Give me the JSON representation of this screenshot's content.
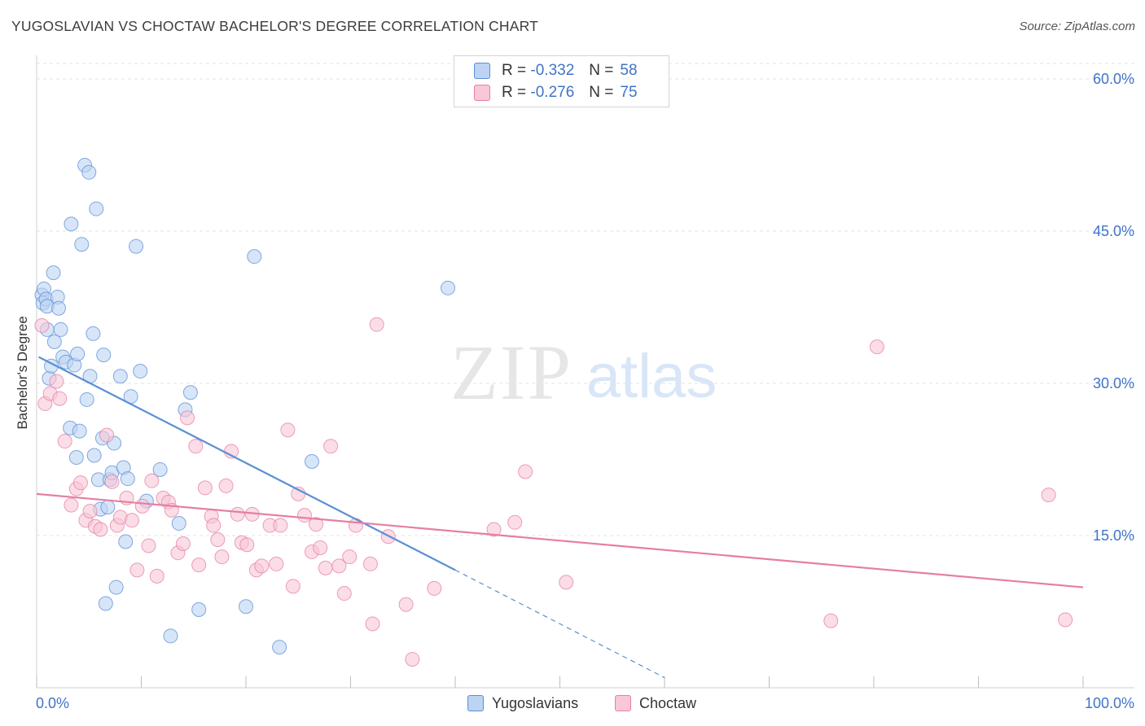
{
  "title": "YUGOSLAVIAN VS CHOCTAW BACHELOR'S DEGREE CORRELATION CHART",
  "source": "Source: ZipAtlas.com",
  "watermark": {
    "zip": "ZIP",
    "atlas": "atlas"
  },
  "legend": {
    "r_label": "R =",
    "n_label": "N =",
    "series": [
      {
        "name": "Yugoslavians",
        "r": "-0.332",
        "n": "58",
        "color": "#5b8fd6"
      },
      {
        "name": "Choctaw",
        "r": "-0.276",
        "n": "75",
        "color": "#e57fa2"
      }
    ]
  },
  "chart_data": {
    "type": "scatter",
    "title": "YUGOSLAVIAN VS CHOCTAW BACHELOR'S DEGREE CORRELATION CHART",
    "xlabel": "",
    "ylabel": "Bachelor's Degree",
    "xlim": [
      0,
      100
    ],
    "ylim": [
      0,
      60
    ],
    "x_tick_labels": [
      "0.0%",
      "100.0%"
    ],
    "y_ticks": [
      15,
      30,
      45,
      60
    ],
    "y_tick_labels": [
      "15.0%",
      "30.0%",
      "45.0%",
      "60.0%"
    ],
    "grid": true,
    "series": [
      {
        "name": "Yugoslavians",
        "color": "#5b8fd6",
        "fill": "#bcd3f3",
        "r": -0.332,
        "n": 58,
        "trend": {
          "x0": 0.2,
          "y0": 32.6,
          "x1": 40.0,
          "y1": 11.6,
          "dash_to_x": 60.0,
          "dash_to_y": 1.0
        },
        "points": [
          {
            "x": 0.5,
            "y": 38.7
          },
          {
            "x": 0.7,
            "y": 39.3
          },
          {
            "x": 0.6,
            "y": 37.9
          },
          {
            "x": 0.9,
            "y": 38.3
          },
          {
            "x": 1.0,
            "y": 37.6
          },
          {
            "x": 1.0,
            "y": 35.3
          },
          {
            "x": 1.2,
            "y": 30.5
          },
          {
            "x": 1.4,
            "y": 31.7
          },
          {
            "x": 1.6,
            "y": 40.9
          },
          {
            "x": 1.7,
            "y": 34.1
          },
          {
            "x": 2.0,
            "y": 38.5
          },
          {
            "x": 2.1,
            "y": 37.4
          },
          {
            "x": 2.3,
            "y": 35.3
          },
          {
            "x": 2.5,
            "y": 32.6
          },
          {
            "x": 2.8,
            "y": 32.1
          },
          {
            "x": 3.2,
            "y": 25.6
          },
          {
            "x": 3.3,
            "y": 45.7
          },
          {
            "x": 3.6,
            "y": 31.8
          },
          {
            "x": 3.8,
            "y": 22.7
          },
          {
            "x": 3.9,
            "y": 32.9
          },
          {
            "x": 4.1,
            "y": 25.3
          },
          {
            "x": 4.3,
            "y": 43.7
          },
          {
            "x": 4.6,
            "y": 51.5
          },
          {
            "x": 4.8,
            "y": 28.4
          },
          {
            "x": 5.0,
            "y": 50.8
          },
          {
            "x": 5.1,
            "y": 30.7
          },
          {
            "x": 5.4,
            "y": 34.9
          },
          {
            "x": 5.5,
            "y": 22.9
          },
          {
            "x": 5.7,
            "y": 47.2
          },
          {
            "x": 5.9,
            "y": 20.5
          },
          {
            "x": 6.1,
            "y": 17.6
          },
          {
            "x": 6.3,
            "y": 24.6
          },
          {
            "x": 6.4,
            "y": 32.8
          },
          {
            "x": 6.6,
            "y": 8.3
          },
          {
            "x": 6.8,
            "y": 17.8
          },
          {
            "x": 7.0,
            "y": 20.5
          },
          {
            "x": 7.2,
            "y": 21.2
          },
          {
            "x": 7.4,
            "y": 24.1
          },
          {
            "x": 7.6,
            "y": 9.9
          },
          {
            "x": 8.0,
            "y": 30.7
          },
          {
            "x": 8.3,
            "y": 21.7
          },
          {
            "x": 8.5,
            "y": 14.4
          },
          {
            "x": 8.7,
            "y": 20.6
          },
          {
            "x": 9.0,
            "y": 28.7
          },
          {
            "x": 9.5,
            "y": 43.5
          },
          {
            "x": 9.9,
            "y": 31.2
          },
          {
            "x": 10.5,
            "y": 18.4
          },
          {
            "x": 11.8,
            "y": 21.5
          },
          {
            "x": 12.8,
            "y": 5.1
          },
          {
            "x": 13.6,
            "y": 16.2
          },
          {
            "x": 14.2,
            "y": 27.4
          },
          {
            "x": 14.7,
            "y": 29.1
          },
          {
            "x": 15.5,
            "y": 7.7
          },
          {
            "x": 20.0,
            "y": 8.0
          },
          {
            "x": 20.8,
            "y": 42.5
          },
          {
            "x": 23.2,
            "y": 4.0
          },
          {
            "x": 26.3,
            "y": 22.3
          },
          {
            "x": 39.3,
            "y": 39.4
          }
        ]
      },
      {
        "name": "Choctaw",
        "color": "#e57fa2",
        "fill": "#f9c7d7",
        "r": -0.276,
        "n": 75,
        "trend": {
          "x0": 0.0,
          "y0": 19.1,
          "x1": 100.0,
          "y1": 9.9
        },
        "points": [
          {
            "x": 0.5,
            "y": 35.7
          },
          {
            "x": 0.8,
            "y": 28.0
          },
          {
            "x": 1.3,
            "y": 29.0
          },
          {
            "x": 1.9,
            "y": 30.2
          },
          {
            "x": 2.2,
            "y": 28.5
          },
          {
            "x": 2.7,
            "y": 24.3
          },
          {
            "x": 3.3,
            "y": 18.0
          },
          {
            "x": 3.8,
            "y": 19.6
          },
          {
            "x": 4.2,
            "y": 20.2
          },
          {
            "x": 4.7,
            "y": 16.5
          },
          {
            "x": 5.1,
            "y": 17.4
          },
          {
            "x": 5.6,
            "y": 15.9
          },
          {
            "x": 6.1,
            "y": 15.6
          },
          {
            "x": 6.7,
            "y": 24.9
          },
          {
            "x": 7.2,
            "y": 20.3
          },
          {
            "x": 7.7,
            "y": 16.0
          },
          {
            "x": 8.0,
            "y": 16.8
          },
          {
            "x": 8.6,
            "y": 18.7
          },
          {
            "x": 9.1,
            "y": 16.5
          },
          {
            "x": 9.6,
            "y": 11.6
          },
          {
            "x": 10.1,
            "y": 17.9
          },
          {
            "x": 10.7,
            "y": 14.0
          },
          {
            "x": 11.0,
            "y": 20.4
          },
          {
            "x": 11.5,
            "y": 11.0
          },
          {
            "x": 12.1,
            "y": 18.7
          },
          {
            "x": 12.6,
            "y": 18.3
          },
          {
            "x": 12.9,
            "y": 17.5
          },
          {
            "x": 13.5,
            "y": 13.3
          },
          {
            "x": 14.0,
            "y": 14.2
          },
          {
            "x": 14.4,
            "y": 26.6
          },
          {
            "x": 15.2,
            "y": 23.8
          },
          {
            "x": 15.5,
            "y": 12.1
          },
          {
            "x": 16.1,
            "y": 19.7
          },
          {
            "x": 16.7,
            "y": 16.9
          },
          {
            "x": 16.9,
            "y": 16.0
          },
          {
            "x": 17.3,
            "y": 14.6
          },
          {
            "x": 17.7,
            "y": 12.9
          },
          {
            "x": 18.1,
            "y": 19.9
          },
          {
            "x": 18.6,
            "y": 23.3
          },
          {
            "x": 19.2,
            "y": 17.1
          },
          {
            "x": 19.6,
            "y": 14.3
          },
          {
            "x": 20.1,
            "y": 14.1
          },
          {
            "x": 20.6,
            "y": 17.1
          },
          {
            "x": 21.0,
            "y": 11.6
          },
          {
            "x": 21.5,
            "y": 12.0
          },
          {
            "x": 22.3,
            "y": 16.0
          },
          {
            "x": 22.9,
            "y": 12.2
          },
          {
            "x": 23.3,
            "y": 16.0
          },
          {
            "x": 24.0,
            "y": 25.4
          },
          {
            "x": 24.5,
            "y": 10.0
          },
          {
            "x": 25.0,
            "y": 19.1
          },
          {
            "x": 25.6,
            "y": 17.0
          },
          {
            "x": 26.3,
            "y": 13.4
          },
          {
            "x": 26.7,
            "y": 16.1
          },
          {
            "x": 27.1,
            "y": 13.8
          },
          {
            "x": 27.6,
            "y": 11.8
          },
          {
            "x": 28.1,
            "y": 23.8
          },
          {
            "x": 28.9,
            "y": 12.0
          },
          {
            "x": 29.4,
            "y": 9.3
          },
          {
            "x": 29.9,
            "y": 12.9
          },
          {
            "x": 30.5,
            "y": 16.0
          },
          {
            "x": 32.1,
            "y": 6.3
          },
          {
            "x": 32.5,
            "y": 35.8
          },
          {
            "x": 33.6,
            "y": 14.9
          },
          {
            "x": 31.9,
            "y": 12.2
          },
          {
            "x": 35.3,
            "y": 8.2
          },
          {
            "x": 35.9,
            "y": 2.8
          },
          {
            "x": 38.0,
            "y": 9.8
          },
          {
            "x": 43.7,
            "y": 15.6
          },
          {
            "x": 45.7,
            "y": 16.3
          },
          {
            "x": 46.7,
            "y": 21.3
          },
          {
            "x": 50.6,
            "y": 10.4
          },
          {
            "x": 75.9,
            "y": 6.6
          },
          {
            "x": 80.3,
            "y": 33.6
          },
          {
            "x": 96.7,
            "y": 19.0
          },
          {
            "x": 98.3,
            "y": 6.7
          }
        ]
      }
    ]
  }
}
